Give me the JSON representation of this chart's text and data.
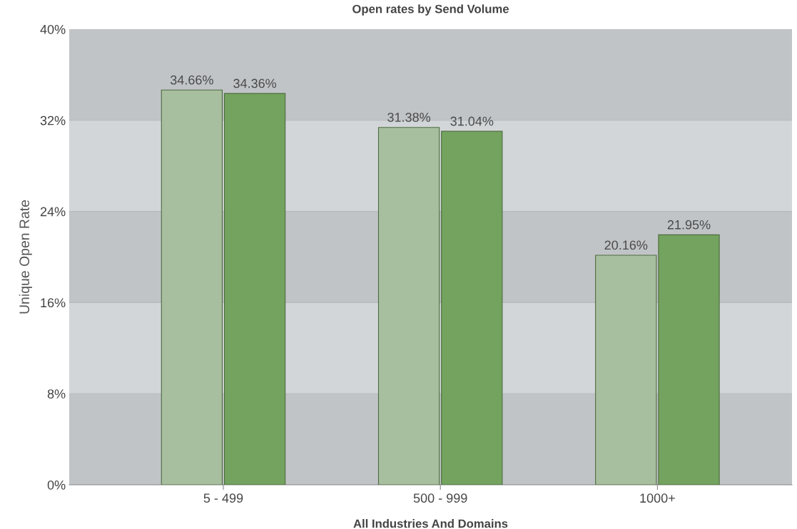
{
  "chart_data": {
    "type": "bar",
    "title": "Open rates by Send Volume",
    "xlabel": "All Industries And Domains",
    "ylabel": "Unique Open Rate",
    "categories": [
      "5 - 499",
      "500 - 999",
      "1000+"
    ],
    "series": [
      {
        "color": "#a8bf9f",
        "values": [
          34.66,
          31.38,
          20.16
        ],
        "value_labels": [
          "34.66%",
          "31.38%",
          "20.16%"
        ]
      },
      {
        "color": "#73a35e",
        "values": [
          34.36,
          31.04,
          21.95
        ],
        "value_labels": [
          "34.36%",
          "31.04%",
          "21.95%"
        ]
      }
    ],
    "ylim": [
      0,
      40
    ],
    "yticks": [
      {
        "value": 0,
        "label": "0%"
      },
      {
        "value": 8,
        "label": "8%"
      },
      {
        "value": 16,
        "label": "16%"
      },
      {
        "value": 24,
        "label": "24%"
      },
      {
        "value": 32,
        "label": "32%"
      },
      {
        "value": 40,
        "label": "40%"
      }
    ],
    "grid": "y",
    "legend": false
  }
}
